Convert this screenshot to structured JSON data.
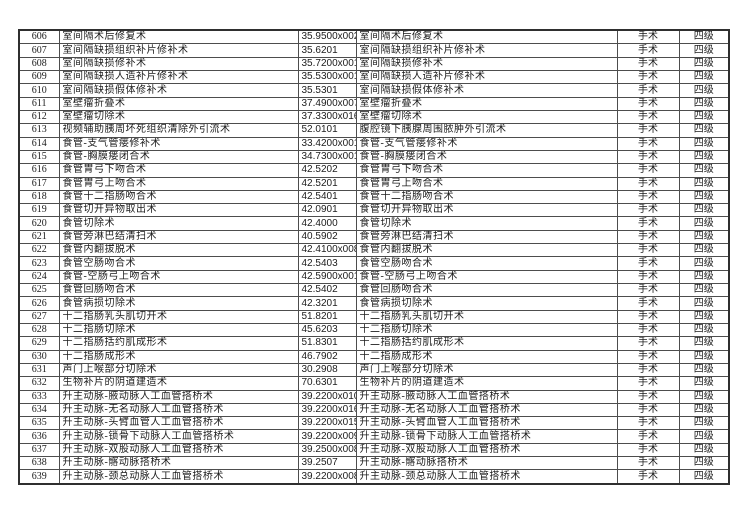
{
  "page": {
    "background_color": "#ffffff",
    "border_color": "#2f2f2f",
    "description_labels": {
      "category_column_value": "手术",
      "level_column_value": "四级"
    }
  },
  "table": {
    "columns": [
      "no",
      "name",
      "code",
      "name2",
      "category",
      "level"
    ],
    "rows": [
      {
        "no": "606",
        "name": "室间隔术后修复术",
        "code": "35.9500x002",
        "name2": "室间隔术后修复术",
        "category": "手术",
        "level": "四级"
      },
      {
        "no": "607",
        "name": "室间隔缺损组织补片修补术",
        "code": "35.6201",
        "name2": "室间隔缺损组织补片修补术",
        "category": "手术",
        "level": "四级"
      },
      {
        "no": "608",
        "name": "室间隔缺损修补术",
        "code": "35.7200x001",
        "name2": "室间隔缺损修补术",
        "category": "手术",
        "level": "四级"
      },
      {
        "no": "609",
        "name": "室间隔缺损人造补片修补术",
        "code": "35.5300x001",
        "name2": "室间隔缺损人造补片修补术",
        "category": "手术",
        "level": "四级"
      },
      {
        "no": "610",
        "name": "室间隔缺损假体修补术",
        "code": "35.5301",
        "name2": "室间隔缺损假体修补术",
        "category": "手术",
        "level": "四级"
      },
      {
        "no": "611",
        "name": "室壁瘤折叠术",
        "code": "37.4900x007",
        "name2": "室壁瘤折叠术",
        "category": "手术",
        "level": "四级"
      },
      {
        "no": "612",
        "name": "室壁瘤切除术",
        "code": "37.3300x016",
        "name2": "室壁瘤切除术",
        "category": "手术",
        "level": "四级"
      },
      {
        "no": "613",
        "name": "视频辅助胰周坏死组织清除外引流术",
        "code": "52.0101",
        "name2": "腹腔镜下胰腺周围脓肿外引流术",
        "category": "手术",
        "level": "四级"
      },
      {
        "no": "614",
        "name": "食管-支气管瘘修补术",
        "code": "33.4200x001",
        "name2": "食管-支气管瘘修补术",
        "category": "手术",
        "level": "四级"
      },
      {
        "no": "615",
        "name": "食管-胸膜瘘闭合术",
        "code": "34.7300x001",
        "name2": "食管-胸膜瘘闭合术",
        "category": "手术",
        "level": "四级"
      },
      {
        "no": "616",
        "name": "食管胃弓下吻合术",
        "code": "42.5202",
        "name2": "食管胃弓下吻合术",
        "category": "手术",
        "level": "四级"
      },
      {
        "no": "617",
        "name": "食管胃弓上吻合术",
        "code": "42.5201",
        "name2": "食管胃弓上吻合术",
        "category": "手术",
        "level": "四级"
      },
      {
        "no": "618",
        "name": "食管十二指肠吻合术",
        "code": "42.5401",
        "name2": "食管十二指肠吻合术",
        "category": "手术",
        "level": "四级"
      },
      {
        "no": "619",
        "name": "食管切开异物取出术",
        "code": "42.0901",
        "name2": "食管切开异物取出术",
        "category": "手术",
        "level": "四级"
      },
      {
        "no": "620",
        "name": "食管切除术",
        "code": "42.4000",
        "name2": "食管切除术",
        "category": "手术",
        "level": "四级"
      },
      {
        "no": "621",
        "name": "食管旁淋巴结清扫术",
        "code": "40.5902",
        "name2": "食管旁淋巴结清扫术",
        "category": "手术",
        "level": "四级"
      },
      {
        "no": "622",
        "name": "食管内翻拔脱术",
        "code": "42.4100x008",
        "name2": "食管内翻拔脱术",
        "category": "手术",
        "level": "四级"
      },
      {
        "no": "623",
        "name": "食管空肠吻合术",
        "code": "42.5403",
        "name2": "食管空肠吻合术",
        "category": "手术",
        "level": "四级"
      },
      {
        "no": "624",
        "name": "食管-空肠弓上吻合术",
        "code": "42.5900x001",
        "name2": "食管-空肠弓上吻合术",
        "category": "手术",
        "level": "四级"
      },
      {
        "no": "625",
        "name": "食管回肠吻合术",
        "code": "42.5402",
        "name2": "食管回肠吻合术",
        "category": "手术",
        "level": "四级"
      },
      {
        "no": "626",
        "name": "食管病损切除术",
        "code": "42.3201",
        "name2": "食管病损切除术",
        "category": "手术",
        "level": "四级"
      },
      {
        "no": "627",
        "name": "十二指肠乳头肌切开术",
        "code": "51.8201",
        "name2": "十二指肠乳头肌切开术",
        "category": "手术",
        "level": "四级"
      },
      {
        "no": "628",
        "name": "十二指肠切除术",
        "code": "45.6203",
        "name2": "十二指肠切除术",
        "category": "手术",
        "level": "四级"
      },
      {
        "no": "629",
        "name": "十二指肠括约肌成形术",
        "code": "51.8301",
        "name2": "十二指肠括约肌成形术",
        "category": "手术",
        "level": "四级"
      },
      {
        "no": "630",
        "name": "十二指肠成形术",
        "code": "46.7902",
        "name2": "十二指肠成形术",
        "category": "手术",
        "level": "四级"
      },
      {
        "no": "631",
        "name": "声门上喉部分切除术",
        "code": "30.2908",
        "name2": "声门上喉部分切除术",
        "category": "手术",
        "level": "四级"
      },
      {
        "no": "632",
        "name": "生物补片的阴道建造术",
        "code": "70.6301",
        "name2": "生物补片的阴道建造术",
        "category": "手术",
        "level": "四级"
      },
      {
        "no": "633",
        "name": "升主动脉-腋动脉人工血管搭桥术",
        "code": "39.2200x010",
        "name2": "升主动脉-腋动脉人工血管搭桥术",
        "category": "手术",
        "level": "四级"
      },
      {
        "no": "634",
        "name": "升主动脉-无名动脉人工血管搭桥术",
        "code": "39.2200x016",
        "name2": "升主动脉-无名动脉人工血管搭桥术",
        "category": "手术",
        "level": "四级"
      },
      {
        "no": "635",
        "name": "升主动脉-头臂血管人工血管搭桥术",
        "code": "39.2200x015",
        "name2": "升主动脉-头臂血管人工血管搭桥术",
        "category": "手术",
        "level": "四级"
      },
      {
        "no": "636",
        "name": "升主动脉-锁骨下动脉人工血管搭桥术",
        "code": "39.2200x009",
        "name2": "升主动脉-锁骨下动脉人工血管搭桥术",
        "category": "手术",
        "level": "四级"
      },
      {
        "no": "637",
        "name": "升主动脉-双股动脉人工血管搭桥术",
        "code": "39.2500x008",
        "name2": "升主动脉-双股动脉人工血管搭桥术",
        "category": "手术",
        "level": "四级"
      },
      {
        "no": "638",
        "name": "升主动脉-髂动脉搭桥术",
        "code": "39.2507",
        "name2": "升主动脉-髂动脉搭桥术",
        "category": "手术",
        "level": "四级"
      },
      {
        "no": "639",
        "name": "升主动脉-颈总动脉人工血管搭桥术",
        "code": "39.2200x008",
        "name2": "升主动脉-颈总动脉人工血管搭桥术",
        "category": "手术",
        "level": "四级"
      }
    ]
  }
}
